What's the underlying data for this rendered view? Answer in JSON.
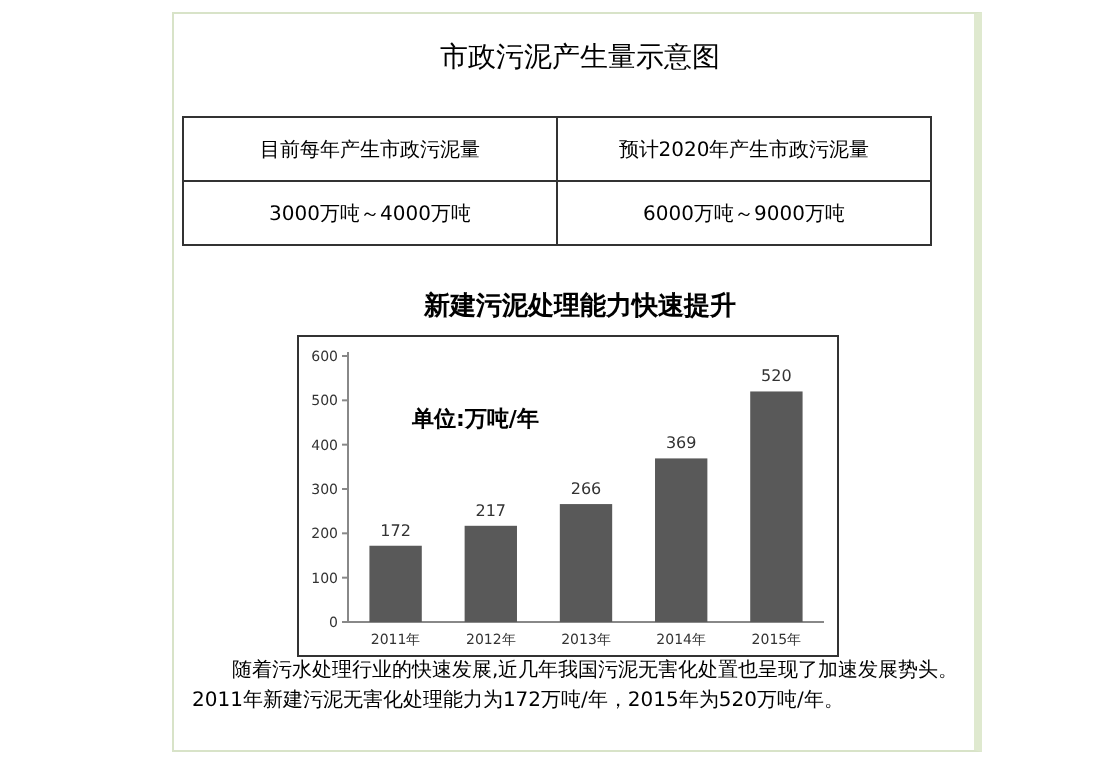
{
  "chart_data": {
    "type": "bar",
    "title": "新建污泥处理能力快速提升",
    "categories": [
      "2011年",
      "2012年",
      "2013年",
      "2014年",
      "2015年"
    ],
    "values": [
      172,
      217,
      266,
      369,
      520
    ],
    "color": "#595959",
    "data_labels": true,
    "ylim": [
      0,
      600
    ],
    "yticks": [
      0,
      100,
      200,
      300,
      400,
      500,
      600
    ],
    "annotations": [
      "市政污泥产生量示意图",
      "目前每年产生市政污泥量",
      "预计2020年产生市政污泥量",
      "3000万吨～4000万吨",
      "6000万吨～9000万吨",
      "单位:万吨/年",
      "随着污水处理行业的快速发展,近几年我国污泥无害化处置也呈现了加速发展势头。2011年新建污泥无害化处理能力为172万吨/年，2015年为520万吨/年。"
    ]
  }
}
